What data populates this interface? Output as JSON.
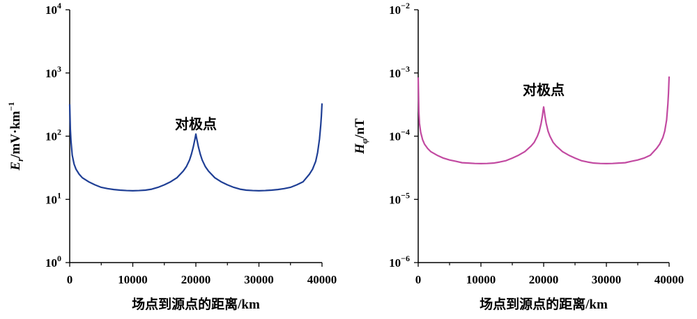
{
  "chart_data": [
    {
      "type": "line",
      "title": "",
      "xlabel": "场点到源点的距离/km",
      "ylabel": "E_r/mV·km^-1",
      "ylabel_parts": {
        "symbol": "E",
        "sub": "r",
        "unit": "/mV·km",
        "sup": "−1"
      },
      "x_scale": "linear",
      "y_scale": "log",
      "xlim": [
        0,
        40000
      ],
      "ylim": [
        1,
        10000
      ],
      "x_ticks": [
        0,
        10000,
        20000,
        30000,
        40000
      ],
      "x_tick_labels": [
        "0",
        "10000",
        "20000",
        "30000",
        "40000"
      ],
      "y_ticks": [
        1,
        10,
        100,
        1000,
        10000
      ],
      "y_tick_labels": [
        {
          "base": "10",
          "exp": "0"
        },
        {
          "base": "10",
          "exp": "1"
        },
        {
          "base": "10",
          "exp": "2"
        },
        {
          "base": "10",
          "exp": "3"
        },
        {
          "base": "10",
          "exp": "4"
        }
      ],
      "grid": false,
      "annotation": {
        "text": "对极点",
        "x": 20000,
        "y": 130
      },
      "series": [
        {
          "color": "#1f3f95",
          "x": [
            0,
            100,
            200,
            400,
            700,
            1000,
            1500,
            2000,
            3000,
            4000,
            5000,
            6000,
            7000,
            8000,
            9000,
            10000,
            11000,
            12000,
            13000,
            14000,
            15000,
            16000,
            17000,
            18000,
            18500,
            19000,
            19300,
            19600,
            19800,
            19900,
            20000,
            20100,
            20200,
            20400,
            20700,
            21000,
            21500,
            22000,
            23000,
            24000,
            25000,
            26000,
            27000,
            28000,
            29000,
            30000,
            31000,
            32000,
            33000,
            34000,
            35000,
            36000,
            37000,
            38000,
            38500,
            39000,
            39300,
            39600,
            39800,
            39900,
            40000
          ],
          "y": [
            320,
            130,
            85,
            50,
            36,
            30,
            25,
            22,
            19,
            17,
            15.5,
            14.8,
            14.3,
            14.0,
            13.8,
            13.7,
            13.8,
            14.0,
            14.5,
            15.5,
            17,
            19,
            22,
            28,
            33,
            42,
            52,
            68,
            85,
            95,
            108,
            95,
            85,
            68,
            52,
            42,
            33,
            28,
            22,
            19,
            17,
            15.5,
            14.5,
            14.0,
            13.8,
            13.7,
            13.8,
            14.0,
            14.3,
            14.8,
            15.5,
            17,
            19,
            25,
            30,
            40,
            55,
            90,
            150,
            210,
            330
          ]
        }
      ]
    },
    {
      "type": "line",
      "title": "",
      "xlabel": "场点到源点的距离/km",
      "ylabel": "H_φ/nT",
      "ylabel_parts": {
        "symbol": "H",
        "sub": "φ",
        "unit": "/nT",
        "sup": ""
      },
      "x_scale": "linear",
      "y_scale": "log",
      "xlim": [
        0,
        40000
      ],
      "ylim": [
        1e-06,
        0.01
      ],
      "x_ticks": [
        0,
        10000,
        20000,
        30000,
        40000
      ],
      "x_tick_labels": [
        "0",
        "10000",
        "20000",
        "30000",
        "40000"
      ],
      "y_ticks": [
        1e-06,
        1e-05,
        0.0001,
        0.001,
        0.01
      ],
      "y_tick_labels": [
        {
          "base": "10",
          "exp": "−6"
        },
        {
          "base": "10",
          "exp": "−5"
        },
        {
          "base": "10",
          "exp": "−4"
        },
        {
          "base": "10",
          "exp": "−3"
        },
        {
          "base": "10",
          "exp": "−2"
        }
      ],
      "grid": false,
      "annotation": {
        "text": "对极点",
        "x": 20000,
        "y": 0.00045
      },
      "series": [
        {
          "color": "#c24aa1",
          "x": [
            0,
            100,
            200,
            400,
            700,
            1000,
            1500,
            2000,
            3000,
            4000,
            5000,
            6000,
            7000,
            8000,
            9000,
            10000,
            11000,
            12000,
            13000,
            14000,
            15000,
            16000,
            17000,
            18000,
            18500,
            19000,
            19300,
            19600,
            19800,
            19900,
            20000,
            20100,
            20200,
            20400,
            20700,
            21000,
            21500,
            22000,
            23000,
            24000,
            25000,
            26000,
            27000,
            28000,
            29000,
            30000,
            31000,
            32000,
            33000,
            34000,
            35000,
            36000,
            37000,
            38000,
            38500,
            39000,
            39300,
            39600,
            39800,
            39900,
            40000
          ],
          "y": [
            0.00085,
            0.00025,
            0.00016,
            0.000115,
            8.8e-05,
            7.5e-05,
            6.4e-05,
            5.7e-05,
            5e-05,
            4.5e-05,
            4.2e-05,
            4e-05,
            3.8e-05,
            3.75e-05,
            3.7e-05,
            3.68e-05,
            3.7e-05,
            3.75e-05,
            3.9e-05,
            4.1e-05,
            4.5e-05,
            5e-05,
            5.7e-05,
            7e-05,
            8e-05,
            0.0001,
            0.00012,
            0.00016,
            0.00021,
            0.00025,
            0.00029,
            0.00025,
            0.00021,
            0.00016,
            0.00012,
            0.0001,
            8e-05,
            7e-05,
            5.7e-05,
            5e-05,
            4.5e-05,
            4.1e-05,
            3.9e-05,
            3.75e-05,
            3.7e-05,
            3.68e-05,
            3.7e-05,
            3.75e-05,
            3.8e-05,
            4e-05,
            4.2e-05,
            4.5e-05,
            5e-05,
            6.4e-05,
            7.5e-05,
            9.5e-05,
            0.00012,
            0.00018,
            0.00032,
            0.00048,
            0.00088
          ]
        }
      ]
    }
  ]
}
